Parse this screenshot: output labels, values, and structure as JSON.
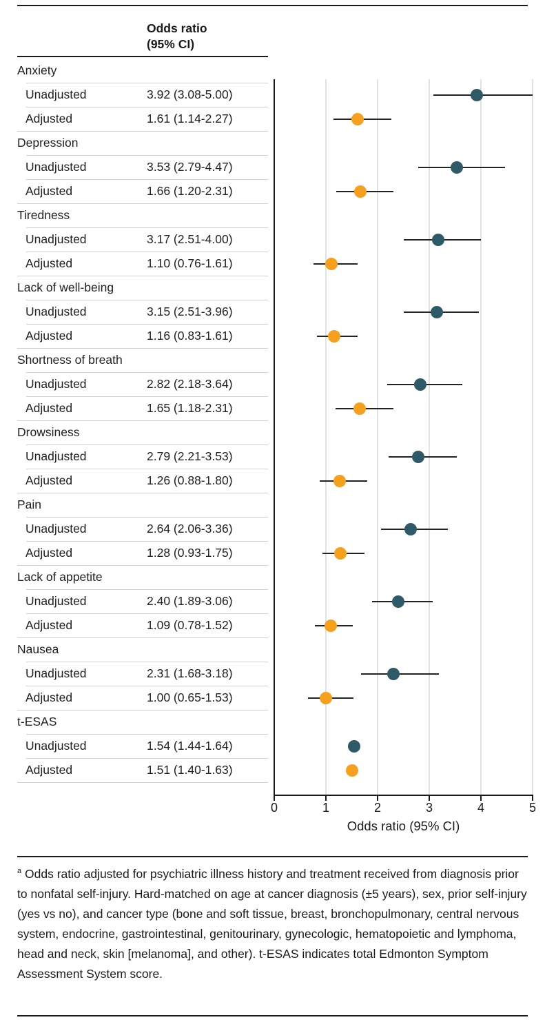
{
  "header": {
    "col_label_line1": "Odds ratio",
    "col_label_line2": "(95% CI)"
  },
  "axis": {
    "title": "Odds ratio (95% CI)",
    "tick_labels": [
      "0",
      "1",
      "2",
      "3",
      "4",
      "5"
    ],
    "min": 0,
    "max": 5,
    "grid": "on",
    "gridline_values": [
      1,
      2,
      3,
      4,
      5
    ]
  },
  "colors": {
    "unadjusted_dot": "#2E5A68",
    "adjusted_dot": "#F7A01E",
    "ci_line": "#222222",
    "grid": "#e2e2e2",
    "rule_dark": "#1a1a1a",
    "rule_light": "#cfcfcf"
  },
  "chart_data": {
    "type": "scatter",
    "subtype": "forest-plot",
    "xlabel": "Odds ratio (95% CI)",
    "xlim": [
      0,
      5
    ],
    "value_column_header": "Odds ratio (95% CI)",
    "groups": [
      {
        "label": "Anxiety",
        "rows": [
          {
            "label": "Unadjusted",
            "display": "3.92 (3.08-5.00)",
            "or": 3.92,
            "lo": 3.08,
            "hi": 5.0,
            "series": "unadjusted"
          },
          {
            "label": "Adjusted",
            "display": "1.61 (1.14-2.27)",
            "or": 1.61,
            "lo": 1.14,
            "hi": 2.27,
            "series": "adjusted"
          }
        ]
      },
      {
        "label": "Depression",
        "rows": [
          {
            "label": "Unadjusted",
            "display": "3.53 (2.79-4.47)",
            "or": 3.53,
            "lo": 2.79,
            "hi": 4.47,
            "series": "unadjusted"
          },
          {
            "label": "Adjusted",
            "display": "1.66 (1.20-2.31)",
            "or": 1.66,
            "lo": 1.2,
            "hi": 2.31,
            "series": "adjusted"
          }
        ]
      },
      {
        "label": "Tiredness",
        "rows": [
          {
            "label": "Unadjusted",
            "display": "3.17 (2.51-4.00)",
            "or": 3.17,
            "lo": 2.51,
            "hi": 4.0,
            "series": "unadjusted"
          },
          {
            "label": "Adjusted",
            "display": "1.10 (0.76-1.61)",
            "or": 1.1,
            "lo": 0.76,
            "hi": 1.61,
            "series": "adjusted"
          }
        ]
      },
      {
        "label": "Lack of well-being",
        "rows": [
          {
            "label": "Unadjusted",
            "display": "3.15 (2.51-3.96)",
            "or": 3.15,
            "lo": 2.51,
            "hi": 3.96,
            "series": "unadjusted"
          },
          {
            "label": "Adjusted",
            "display": "1.16 (0.83-1.61)",
            "or": 1.16,
            "lo": 0.83,
            "hi": 1.61,
            "series": "adjusted"
          }
        ]
      },
      {
        "label": "Shortness of breath",
        "rows": [
          {
            "label": "Unadjusted",
            "display": "2.82 (2.18-3.64)",
            "or": 2.82,
            "lo": 2.18,
            "hi": 3.64,
            "series": "unadjusted"
          },
          {
            "label": "Adjusted",
            "display": "1.65 (1.18-2.31)",
            "or": 1.65,
            "lo": 1.18,
            "hi": 2.31,
            "series": "adjusted"
          }
        ]
      },
      {
        "label": "Drowsiness",
        "rows": [
          {
            "label": "Unadjusted",
            "display": "2.79 (2.21-3.53)",
            "or": 2.79,
            "lo": 2.21,
            "hi": 3.53,
            "series": "unadjusted"
          },
          {
            "label": "Adjusted",
            "display": "1.26 (0.88-1.80)",
            "or": 1.26,
            "lo": 0.88,
            "hi": 1.8,
            "series": "adjusted"
          }
        ]
      },
      {
        "label": "Pain",
        "rows": [
          {
            "label": "Unadjusted",
            "display": "2.64 (2.06-3.36)",
            "or": 2.64,
            "lo": 2.06,
            "hi": 3.36,
            "series": "unadjusted"
          },
          {
            "label": "Adjusted",
            "display": "1.28 (0.93-1.75)",
            "or": 1.28,
            "lo": 0.93,
            "hi": 1.75,
            "series": "adjusted"
          }
        ]
      },
      {
        "label": "Lack of appetite",
        "rows": [
          {
            "label": "Unadjusted",
            "display": "2.40 (1.89-3.06)",
            "or": 2.4,
            "lo": 1.89,
            "hi": 3.06,
            "series": "unadjusted"
          },
          {
            "label": "Adjusted",
            "display": "1.09 (0.78-1.52)",
            "or": 1.09,
            "lo": 0.78,
            "hi": 1.52,
            "series": "adjusted"
          }
        ]
      },
      {
        "label": "Nausea",
        "rows": [
          {
            "label": "Unadjusted",
            "display": "2.31 (1.68-3.18)",
            "or": 2.31,
            "lo": 1.68,
            "hi": 3.18,
            "series": "unadjusted"
          },
          {
            "label": "Adjusted",
            "display": "1.00 (0.65-1.53)",
            "or": 1.0,
            "lo": 0.65,
            "hi": 1.53,
            "series": "adjusted"
          }
        ]
      },
      {
        "label": "t-ESAS",
        "rows": [
          {
            "label": "Unadjusted",
            "display": "1.54 (1.44-1.64)",
            "or": 1.54,
            "lo": 1.44,
            "hi": 1.64,
            "series": "unadjusted"
          },
          {
            "label": "Adjusted",
            "display": "1.51 (1.40-1.63)",
            "or": 1.51,
            "lo": 1.4,
            "hi": 1.63,
            "series": "adjusted"
          }
        ]
      }
    ]
  },
  "footnote": {
    "marker": "a",
    "text": "Odds ratio adjusted for psychiatric illness history and treatment received from diagnosis prior to nonfatal self-injury. Hard-matched on age at cancer diagnosis (±5 years), sex, prior self-injury (yes vs no), and cancer type (bone and soft tissue, breast, bronchopulmonary, central nervous system, endocrine, gastrointestinal, genitourinary, gynecologic, hematopoietic and lymphoma, head and neck, skin [melanoma], and other). t-ESAS indicates total Edmonton Symptom Assessment System score."
  }
}
